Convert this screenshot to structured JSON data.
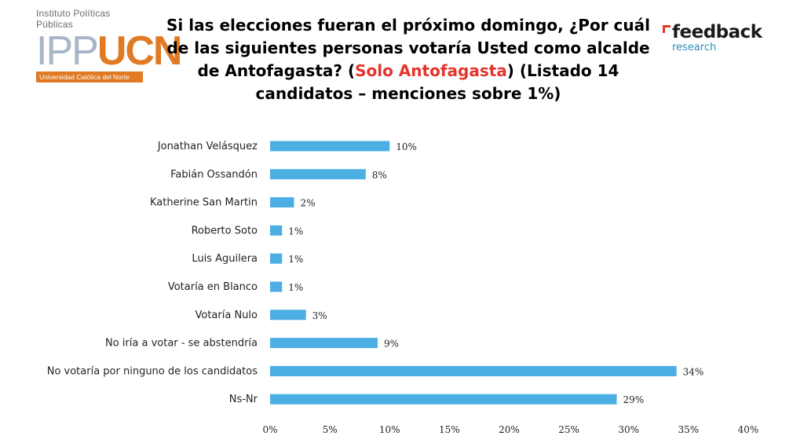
{
  "header": {
    "logo_left": {
      "subtitle": "Instituto Políticas Públicas",
      "ipp": "IPP",
      "ucn": "UCN",
      "band": "Universidad Católica del Norte"
    },
    "logo_right": {
      "main": "feedback",
      "sub": "research"
    },
    "title_part1": "Si las elecciones fueran el próximo domingo, ¿Por cuál de las siguientes personas votaría Usted como alcalde de Antofagasta? (",
    "title_highlight": "Solo Antofagasta",
    "title_part2": ") (Listado 14 candidatos – menciones sobre 1%)"
  },
  "colors": {
    "bar": "#4bafe3",
    "highlight": "#e5342b",
    "text": "#222222"
  },
  "chart_data": {
    "type": "bar",
    "orientation": "horizontal",
    "categories": [
      "Jonathan Velásquez",
      "Fabián Ossandón",
      "Katherine San Martin",
      "Roberto Soto",
      "Luis Aguilera",
      "Votaría en Blanco",
      "Votaría Nulo",
      "No iría a votar - se abstendría",
      "No votaría por ninguno de los candidatos",
      "Ns-Nr"
    ],
    "values": [
      10,
      8,
      2,
      1,
      1,
      1,
      3,
      9,
      34,
      29
    ],
    "value_labels": [
      "10%",
      "8%",
      "2%",
      "1%",
      "1%",
      "1%",
      "3%",
      "9%",
      "34%",
      "29%"
    ],
    "xlim": [
      0,
      40
    ],
    "xticks": [
      0,
      5,
      10,
      15,
      20,
      25,
      30,
      35,
      40
    ],
    "xtick_labels": [
      "0%",
      "5%",
      "10%",
      "15%",
      "20%",
      "25%",
      "30%",
      "35%",
      "40%"
    ],
    "grid": false,
    "legend": "none"
  }
}
